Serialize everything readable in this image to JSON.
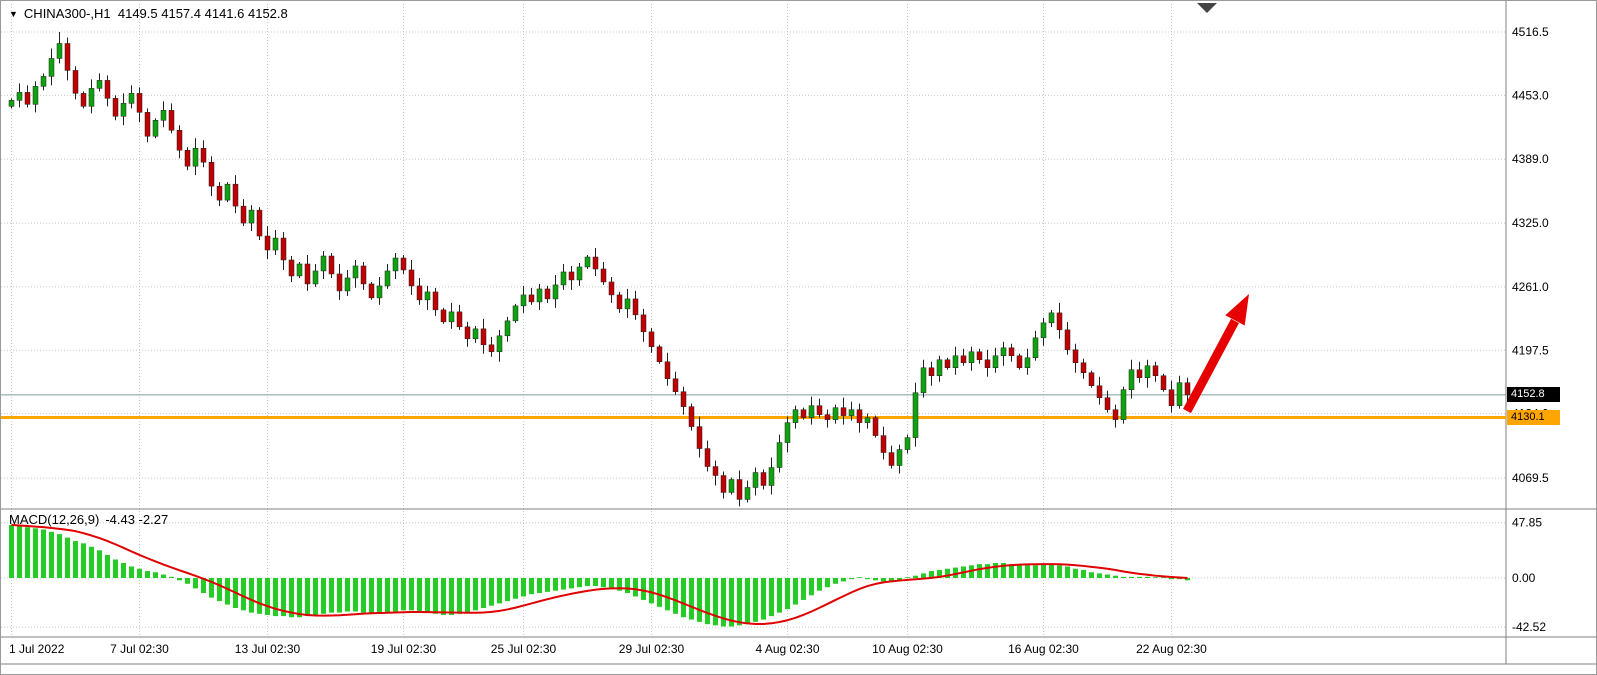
{
  "header": {
    "dropdown_icon": "▼",
    "symbol": "CHINA300-,H1",
    "ohlc": "4149.5 4157.4 4141.6 4152.8"
  },
  "chart_data": {
    "type": "candlestick",
    "title": "CHINA300-,H1",
    "symbol": "CHINA300-",
    "timeframe": "H1",
    "ohlc_display": {
      "open": "4149.5",
      "high": "4157.4",
      "low": "4141.6",
      "close": "4152.8"
    },
    "price_axis_labels": [
      "4516.5",
      "4453.0",
      "4389.0",
      "4325.0",
      "4261.0",
      "4197.5",
      "4134.0",
      "4069.5"
    ],
    "date_labels": [
      "1 Jul 2022",
      "7 Jul 02:30",
      "13 Jul 02:30",
      "19 Jul 02:30",
      "25 Jul 02:30",
      "29 Jul 02:30",
      "4 Aug 02:30",
      "10 Aug 02:30",
      "16 Aug 02:30",
      "22 Aug 02:30"
    ],
    "date_label_indices": [
      0,
      16,
      32,
      49,
      64,
      80,
      97,
      112,
      129,
      145
    ],
    "current_price": "4152.8",
    "hline_price": "4130.1",
    "candles": {
      "first_open": 4442,
      "closes": [
        4448,
        4456,
        4444,
        4462,
        4472,
        4490,
        4505,
        4478,
        4455,
        4442,
        4460,
        4468,
        4450,
        4432,
        4445,
        4455,
        4436,
        4412,
        4428,
        4438,
        4418,
        4398,
        4382,
        4400,
        4386,
        4362,
        4348,
        4364,
        4342,
        4325,
        4338,
        4312,
        4298,
        4310,
        4288,
        4272,
        4284,
        4264,
        4277,
        4292,
        4274,
        4257,
        4270,
        4282,
        4264,
        4250,
        4262,
        4277,
        4290,
        4278,
        4262,
        4248,
        4256,
        4238,
        4226,
        4236,
        4221,
        4209,
        4219,
        4203,
        4196,
        4212,
        4227,
        4242,
        4253,
        4246,
        4259,
        4249,
        4263,
        4276,
        4268,
        4281,
        4291,
        4279,
        4266,
        4253,
        4239,
        4249,
        4233,
        4216,
        4201,
        4186,
        4169,
        4156,
        4141,
        4121,
        4099,
        4081,
        4072,
        4055,
        4068,
        4048,
        4060,
        4075,
        4062,
        4080,
        4105,
        4125,
        4138,
        4130,
        4142,
        4133,
        4128,
        4140,
        4132,
        4138,
        4125,
        4130,
        4112,
        4095,
        4082,
        4098,
        4110,
        4155,
        4180,
        4172,
        4188,
        4180,
        4192,
        4185,
        4196,
        4188,
        4180,
        4192,
        4200,
        4192,
        4180,
        4190,
        4210,
        4225,
        4235,
        4218,
        4198,
        4185,
        4175,
        4162,
        4150,
        4138,
        4128,
        4158,
        4178,
        4170,
        4182,
        4172,
        4158,
        4142,
        4165,
        4152.8
      ],
      "high_overrides": {
        "6": 4516.5
      },
      "low_overrides": {}
    },
    "macd": {
      "label": "MACD(12,26,9)",
      "values_text": "-4.43 -2.27",
      "axis_labels": [
        "47.85",
        "0.00",
        "-42.52"
      ],
      "signal": "sma9_of_histogram",
      "histogram": [
        46,
        45,
        44,
        43,
        42,
        40,
        38,
        35,
        32,
        30,
        27,
        24,
        20,
        16,
        13,
        10,
        8,
        6,
        5,
        3,
        1,
        -2,
        -5,
        -9,
        -13,
        -17,
        -20,
        -23,
        -26,
        -28,
        -30,
        -31,
        -32,
        -33,
        -33,
        -34,
        -34,
        -33,
        -32,
        -31,
        -30,
        -30,
        -29,
        -29,
        -30,
        -31,
        -31,
        -30,
        -29,
        -28,
        -28,
        -29,
        -30,
        -31,
        -32,
        -32,
        -31,
        -30,
        -28,
        -26,
        -24,
        -22,
        -20,
        -18,
        -16,
        -14,
        -13,
        -12,
        -11,
        -10,
        -9,
        -8,
        -7,
        -7,
        -8,
        -9,
        -11,
        -13,
        -16,
        -19,
        -22,
        -25,
        -28,
        -31,
        -34,
        -36,
        -38,
        -40,
        -41,
        -42,
        -42,
        -41,
        -40,
        -38,
        -36,
        -33,
        -30,
        -27,
        -23,
        -19,
        -15,
        -11,
        -8,
        -5,
        -3,
        -1,
        0,
        -1,
        -2,
        -3,
        -3,
        -2,
        0,
        2,
        4,
        6,
        7,
        8,
        9,
        10,
        11,
        12,
        12,
        13,
        13,
        12,
        12,
        11,
        11,
        12,
        12,
        11,
        10,
        8,
        7,
        5,
        4,
        3,
        2,
        1,
        1,
        1,
        1,
        0,
        0,
        -1,
        -1,
        -2
      ]
    },
    "annotations": {
      "trend_arrow": {
        "direction": "up-right",
        "color": "#E60000"
      }
    }
  },
  "colors": {
    "up": "#0CA30C",
    "down": "#C00000",
    "outline": "#222222",
    "macd_bar": "#26CC26",
    "signal": "#E00000",
    "hline": "#FFA500",
    "price_line": "#7C9E9E",
    "grid": "#C8C8C8",
    "separator": "#808080",
    "arrow": "#E60000",
    "badge_dark_bg": "#000000",
    "badge_dark_text": "#FFFFFF",
    "badge_orange_bg": "#FFA500",
    "badge_orange_text": "#000000"
  }
}
